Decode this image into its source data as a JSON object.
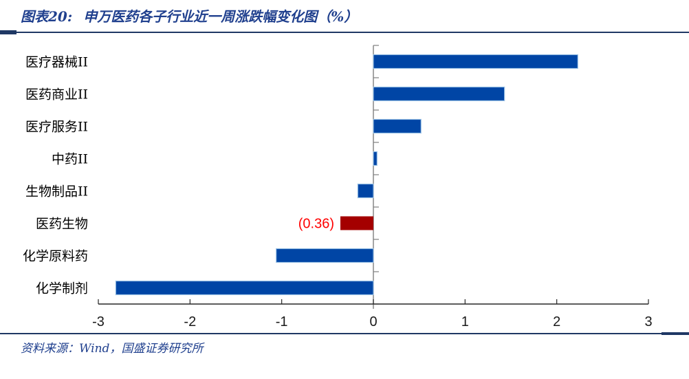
{
  "header": {
    "label": "图表20:",
    "title": "申万医药各子行业近一周涨跌幅变化图（%）"
  },
  "footer": {
    "source": "资料来源：Wind，国盛证券研究所"
  },
  "colors": {
    "accent_navy": "#1F3864",
    "title_text": "#20408E",
    "bar_blue": "#0045A5",
    "bar_blue_border": "#9DC3E6",
    "bar_red": "#A40000",
    "value_label_red": "#FF0000",
    "axis_line": "#262626",
    "zero_line_gray": "#7F7F7F",
    "tick_label": "#1A1A1A",
    "category_label": "#000000"
  },
  "chart_data": {
    "type": "bar",
    "orientation": "horizontal",
    "title": "申万医药各子行业近一周涨跌幅变化图（%）",
    "categories": [
      "医疗器械II",
      "医药商业II",
      "医疗服务II",
      "中药II",
      "生物制品II",
      "医药生物",
      "化学原料药",
      "化学制剂"
    ],
    "values": [
      2.23,
      1.43,
      0.52,
      0.04,
      -0.17,
      -0.36,
      -1.06,
      -2.81
    ],
    "highlight_index": 5,
    "data_label": {
      "index": 5,
      "text": "(0.36)"
    },
    "xlim": [
      -3,
      3
    ],
    "x_ticks": [
      -3,
      -2,
      -1,
      0,
      1,
      2,
      3
    ],
    "x_tick_labels": [
      "-3",
      "-2",
      "-1",
      "0",
      "1",
      "2",
      "3"
    ],
    "xlabel": "",
    "ylabel": "",
    "grid": false,
    "legend": false
  }
}
